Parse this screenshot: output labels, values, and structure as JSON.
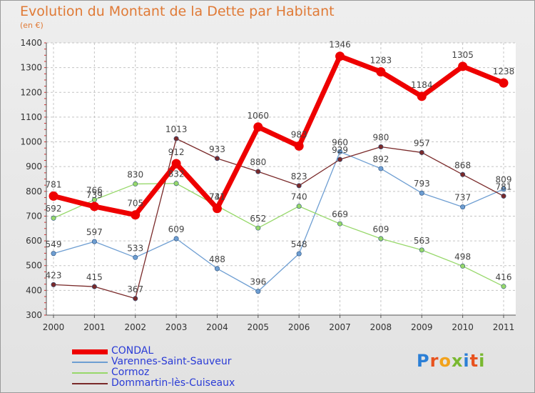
{
  "header": {
    "title": "Evolution du Montant de la Dette par Habitant",
    "subtitle": "(en €)"
  },
  "logo": {
    "text": "Proxiti",
    "letters": [
      "P",
      "r",
      "o",
      "x",
      "i",
      "t",
      "i"
    ]
  },
  "chart_data": {
    "type": "line",
    "categories": [
      "2000",
      "2001",
      "2002",
      "2003",
      "2004",
      "2005",
      "2006",
      "2007",
      "2008",
      "2009",
      "2010",
      "2011"
    ],
    "ylim": [
      300,
      1400
    ],
    "yticks": [
      300,
      400,
      500,
      600,
      700,
      800,
      900,
      1000,
      1100,
      1200,
      1300,
      1400
    ],
    "grid": true,
    "series": [
      {
        "name": "CONDAL",
        "color": "#ee0000",
        "values": [
          781,
          739,
          705,
          912,
          731,
          1060,
          983,
          1346,
          1283,
          1184,
          1305,
          1238
        ],
        "labels": [
          "781",
          "739",
          "705",
          "912",
          "731",
          "1060",
          "983",
          "1346",
          "1283",
          "1184",
          "1305",
          "1238"
        ]
      },
      {
        "name": "Varennes-Saint-Sauveur",
        "color": "#6e9ed2",
        "values": [
          549,
          597,
          533,
          609,
          488,
          396,
          548,
          960,
          892,
          793,
          737,
          809
        ],
        "labels": [
          "549",
          "597",
          "533",
          "609",
          "488",
          "396",
          "548",
          "960",
          "892",
          "793",
          "737",
          "809"
        ]
      },
      {
        "name": "Cormoz",
        "color": "#97d86a",
        "values": [
          692,
          766,
          830,
          832,
          741,
          652,
          740,
          669,
          609,
          563,
          498,
          416
        ],
        "labels": [
          "692",
          "766",
          "830",
          "832",
          "741",
          "652",
          "740",
          "669",
          "609",
          "563",
          "498",
          "416"
        ]
      },
      {
        "name": "Dommartin-lès-Cuiseaux",
        "color": "#7a2a2a",
        "values": [
          423,
          415,
          367,
          1013,
          933,
          880,
          823,
          929,
          980,
          957,
          868,
          781
        ],
        "labels": [
          "423",
          "415",
          "367",
          "1013",
          "933",
          "880",
          "823",
          "929",
          "980",
          "957",
          "868",
          "781"
        ]
      }
    ]
  }
}
